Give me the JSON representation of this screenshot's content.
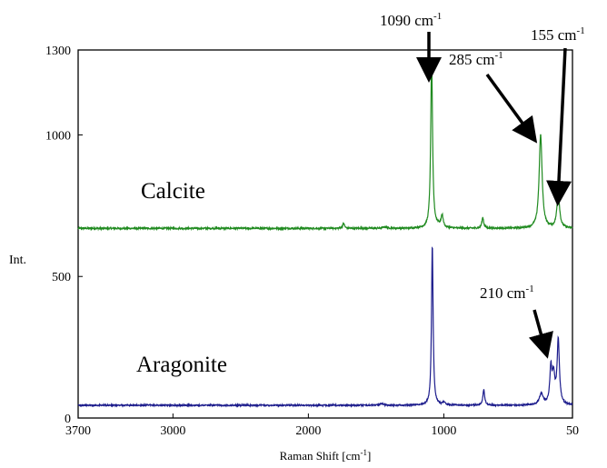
{
  "chart_data": {
    "type": "line",
    "title": "",
    "xlabel": "Raman Shift [cm",
    "xlabel_sup": "-1",
    "xlabel_tail": "]",
    "ylabel": "Int.",
    "xlim": [
      3700,
      50
    ],
    "ylim": [
      0,
      1300
    ],
    "x_ticks": [
      3700,
      3000,
      2000,
      1000,
      50
    ],
    "y_ticks": [
      0,
      500,
      1000,
      1300
    ],
    "grid": false,
    "series": [
      {
        "name": "Calcite",
        "color": "#1f8a1f",
        "baseline": 670,
        "noise": 3,
        "peaks": [
          {
            "x": 1740,
            "height": 18,
            "width": 8
          },
          {
            "x": 1435,
            "height": 5,
            "width": 15
          },
          {
            "x": 1090,
            "height": 595,
            "width": 8
          },
          {
            "x": 1040,
            "height": 8,
            "width": 20
          },
          {
            "x": 1012,
            "height": 42,
            "width": 9
          },
          {
            "x": 712,
            "height": 38,
            "width": 8
          },
          {
            "x": 285,
            "height": 330,
            "width": 13
          },
          {
            "x": 155,
            "height": 120,
            "width": 12
          }
        ]
      },
      {
        "name": "Aragonite",
        "color": "#1c1c8c",
        "baseline": 45,
        "noise": 2.5,
        "peaks": [
          {
            "x": 1460,
            "height": 5,
            "width": 18
          },
          {
            "x": 1085,
            "height": 565,
            "width": 7
          },
          {
            "x": 1000,
            "height": 10,
            "width": 12
          },
          {
            "x": 705,
            "height": 55,
            "width": 8
          },
          {
            "x": 280,
            "height": 40,
            "width": 16
          },
          {
            "x": 210,
            "height": 120,
            "width": 9
          },
          {
            "x": 190,
            "height": 100,
            "width": 12
          },
          {
            "x": 155,
            "height": 225,
            "width": 10
          }
        ]
      }
    ],
    "annotations": [
      {
        "id": "ann-1090",
        "text": "1090 cm",
        "sup": "-1",
        "x": 1090,
        "target": "Calcite"
      },
      {
        "id": "ann-285",
        "text": "285 cm",
        "sup": "-1",
        "x": 285,
        "target": "Calcite"
      },
      {
        "id": "ann-155",
        "text": "155 cm",
        "sup": "-1",
        "x": 155,
        "target": "Calcite"
      },
      {
        "id": "ann-210",
        "text": "210 cm",
        "sup": "-1",
        "x": 210,
        "target": "Aragonite"
      }
    ]
  }
}
